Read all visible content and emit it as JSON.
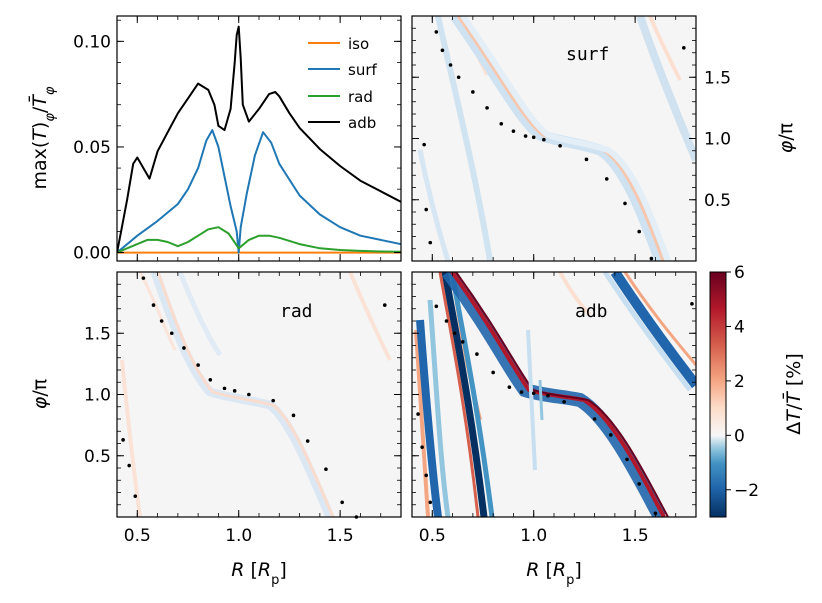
{
  "chart_data": [
    {
      "panel": "top-left",
      "type": "line",
      "ylabel": "max(T)_φ/T̄_φ",
      "ylabel_parts": {
        "main": "max(",
        "t1": "T",
        "mid": ")",
        "sub1": "φ",
        "slash": "/",
        "t2": "T̄",
        "sub2": "φ"
      },
      "xlim": [
        0.4,
        1.8
      ],
      "ylim": [
        -0.004,
        0.112
      ],
      "yticks": [
        0.0,
        0.05,
        0.1
      ],
      "ytick_labels": [
        "0.00",
        "0.05",
        "0.10"
      ],
      "legend_position": "top-right",
      "series": [
        {
          "name": "iso",
          "color": "#ff7f0e",
          "x": [
            0.4,
            1.8
          ],
          "y": [
            0.0,
            0.0
          ]
        },
        {
          "name": "surf",
          "color": "#1f77b4",
          "x": [
            0.4,
            0.5,
            0.6,
            0.7,
            0.75,
            0.8,
            0.84,
            0.87,
            0.9,
            0.93,
            0.96,
            0.99,
            1.0,
            1.01,
            1.04,
            1.08,
            1.12,
            1.16,
            1.2,
            1.3,
            1.4,
            1.5,
            1.6,
            1.7,
            1.8
          ],
          "y": [
            0.0,
            0.008,
            0.015,
            0.023,
            0.03,
            0.04,
            0.053,
            0.058,
            0.05,
            0.036,
            0.022,
            0.01,
            0.0,
            0.012,
            0.028,
            0.046,
            0.057,
            0.052,
            0.042,
            0.027,
            0.018,
            0.012,
            0.008,
            0.006,
            0.004
          ]
        },
        {
          "name": "rad",
          "color": "#2ca02c",
          "x": [
            0.4,
            0.45,
            0.5,
            0.55,
            0.6,
            0.65,
            0.7,
            0.75,
            0.8,
            0.85,
            0.9,
            0.95,
            1.0,
            1.05,
            1.1,
            1.15,
            1.2,
            1.3,
            1.4,
            1.5,
            1.6,
            1.7,
            1.8
          ],
          "y": [
            0.0,
            0.002,
            0.004,
            0.006,
            0.006,
            0.005,
            0.003,
            0.005,
            0.008,
            0.011,
            0.012,
            0.009,
            0.002,
            0.006,
            0.008,
            0.008,
            0.007,
            0.004,
            0.002,
            0.0012,
            0.0008,
            0.0005,
            0.0004
          ]
        },
        {
          "name": "adb",
          "color": "#000000",
          "x": [
            0.4,
            0.42,
            0.45,
            0.48,
            0.5,
            0.53,
            0.56,
            0.6,
            0.65,
            0.7,
            0.75,
            0.8,
            0.85,
            0.88,
            0.9,
            0.93,
            0.96,
            0.98,
            0.99,
            1.0,
            1.01,
            1.02,
            1.05,
            1.1,
            1.15,
            1.18,
            1.2,
            1.25,
            1.3,
            1.4,
            1.5,
            1.6,
            1.7,
            1.8
          ],
          "y": [
            0.0,
            0.01,
            0.025,
            0.042,
            0.045,
            0.04,
            0.035,
            0.048,
            0.057,
            0.066,
            0.073,
            0.08,
            0.077,
            0.07,
            0.06,
            0.058,
            0.068,
            0.09,
            0.103,
            0.107,
            0.092,
            0.07,
            0.062,
            0.068,
            0.075,
            0.076,
            0.074,
            0.066,
            0.059,
            0.049,
            0.041,
            0.034,
            0.029,
            0.024
          ]
        }
      ]
    },
    {
      "panel": "top-right",
      "type": "heatmap",
      "label": "surf",
      "ylabel": "φ/π",
      "ylabel_parts": {
        "phi": "φ",
        "rest": "/π"
      },
      "xlim": [
        0.4,
        1.8
      ],
      "ylim": [
        0.0,
        2.0
      ],
      "yticks": [
        0.5,
        1.0,
        1.5
      ],
      "ytick_labels": [
        "0.5",
        "1.0",
        "1.5"
      ],
      "dots": [
        [
          0.46,
          0.95
        ],
        [
          0.47,
          0.42
        ],
        [
          0.49,
          0.15
        ],
        [
          0.52,
          1.87
        ],
        [
          0.55,
          1.72
        ],
        [
          0.59,
          1.6
        ],
        [
          0.63,
          1.5
        ],
        [
          0.7,
          1.38
        ],
        [
          0.77,
          1.25
        ],
        [
          0.84,
          1.12
        ],
        [
          0.9,
          1.06
        ],
        [
          0.96,
          1.02
        ],
        [
          1.0,
          1.01
        ],
        [
          1.05,
          0.99
        ],
        [
          1.13,
          0.94
        ],
        [
          1.26,
          0.83
        ],
        [
          1.36,
          0.67
        ],
        [
          1.45,
          0.47
        ],
        [
          1.52,
          0.24
        ],
        [
          1.58,
          0.02
        ],
        [
          1.74,
          1.74
        ]
      ]
    },
    {
      "panel": "bottom-left",
      "type": "heatmap",
      "label": "rad",
      "ylabel": "φ/π",
      "ylabel_parts": {
        "phi": "φ",
        "rest": "/π"
      },
      "xlabel": "R [R_p]",
      "xlabel_parts": {
        "r": "R",
        "open": " [",
        "rp": "R",
        "sub": "p",
        "close": "]"
      },
      "xlim": [
        0.4,
        1.8
      ],
      "ylim": [
        0.0,
        2.0
      ],
      "xticks": [
        0.5,
        1.0,
        1.5
      ],
      "xtick_labels": [
        "0.5",
        "1.0",
        "1.5"
      ],
      "yticks": [
        0.5,
        1.0,
        1.5
      ],
      "ytick_labels": [
        "0.5",
        "1.0",
        "1.5"
      ],
      "dots": [
        [
          0.43,
          0.63
        ],
        [
          0.46,
          0.42
        ],
        [
          0.49,
          0.17
        ],
        [
          0.53,
          1.95
        ],
        [
          0.58,
          1.73
        ],
        [
          0.62,
          1.6
        ],
        [
          0.67,
          1.5
        ],
        [
          0.73,
          1.38
        ],
        [
          0.8,
          1.24
        ],
        [
          0.86,
          1.12
        ],
        [
          0.93,
          1.05
        ],
        [
          0.98,
          1.03
        ],
        [
          1.05,
          1.0
        ],
        [
          1.17,
          0.95
        ],
        [
          1.27,
          0.83
        ],
        [
          1.34,
          0.62
        ],
        [
          1.43,
          0.39
        ],
        [
          1.51,
          0.12
        ],
        [
          1.58,
          0.0
        ],
        [
          1.72,
          1.73
        ]
      ]
    },
    {
      "panel": "bottom-right",
      "type": "heatmap",
      "label": "adb",
      "xlabel": "R [R_p]",
      "xlabel_parts": {
        "r": "R",
        "open": " [",
        "rp": "R",
        "sub": "p",
        "close": "]"
      },
      "xlim": [
        0.4,
        1.8
      ],
      "ylim": [
        0.0,
        2.0
      ],
      "xticks": [
        0.5,
        1.0,
        1.5
      ],
      "xtick_labels": [
        "0.5",
        "1.0",
        "1.5"
      ],
      "dots": [
        [
          0.43,
          0.84
        ],
        [
          0.45,
          0.57
        ],
        [
          0.47,
          0.34
        ],
        [
          0.49,
          0.12
        ],
        [
          0.52,
          1.72
        ],
        [
          0.57,
          1.6
        ],
        [
          0.61,
          1.5
        ],
        [
          0.65,
          1.43
        ],
        [
          0.72,
          1.33
        ],
        [
          0.8,
          1.18
        ],
        [
          0.88,
          1.06
        ],
        [
          0.94,
          1.02
        ],
        [
          1.0,
          1.01
        ],
        [
          1.07,
          0.99
        ],
        [
          1.15,
          0.94
        ],
        [
          1.3,
          0.8
        ],
        [
          1.38,
          0.67
        ],
        [
          1.46,
          0.47
        ],
        [
          1.52,
          0.27
        ],
        [
          1.6,
          0.03
        ],
        [
          1.78,
          1.74
        ]
      ]
    },
    {
      "panel": "colorbar",
      "type": "colorbar",
      "label": "ΔT/T̄ [%]",
      "label_parts": {
        "delta": "Δ",
        "t1": "T",
        "slash": "/",
        "t2": "T̄",
        "unit": " [%]"
      },
      "vmin": -3,
      "vmax": 6,
      "ticks": [
        -2,
        0,
        2,
        4,
        6
      ],
      "tick_labels": [
        "−2",
        "0",
        "2",
        "4",
        "6"
      ],
      "colormap": "RdBu_r"
    }
  ]
}
